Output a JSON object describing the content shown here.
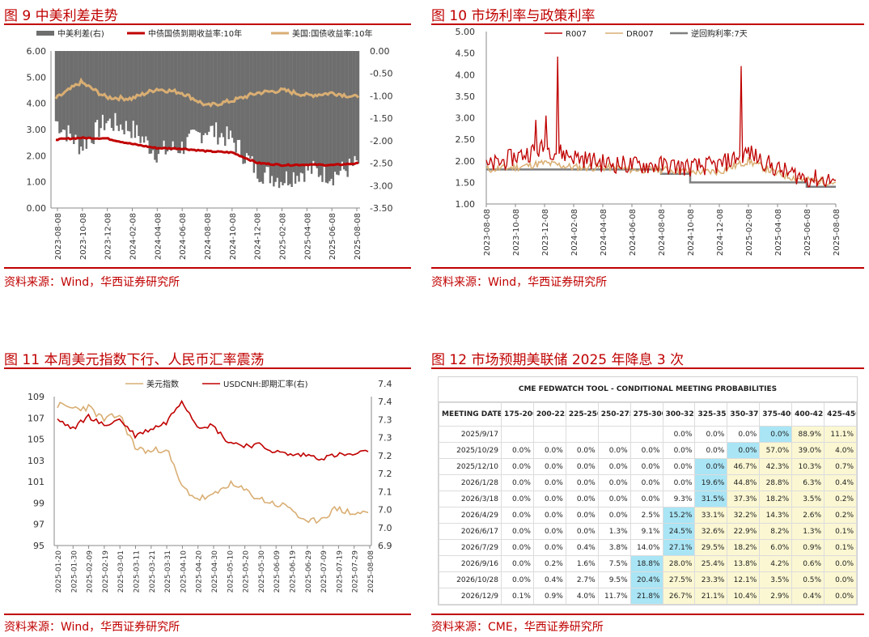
{
  "panels": {
    "p9": {
      "title": "图 9  中美利差走势",
      "source": "资料来源：Wind，华西证券研究所",
      "legend": [
        "中美利差(右)",
        "中债国债到期收益率:10年",
        "美国:国债收益率:10年"
      ],
      "colors": {
        "spread": "#6e6e6e",
        "cn": "#c00000",
        "us": "#d9ae73"
      }
    },
    "p10": {
      "title": "图 10  市场利率与政策利率",
      "source": "资料来源：Wind，华西证券研究所",
      "legend": [
        "R007",
        "DR007",
        "逆回购利率:7天"
      ],
      "colors": {
        "r007": "#c00000",
        "dr007": "#d9ae73",
        "rev": "#7f7f7f"
      }
    },
    "p11": {
      "title": "图 11 本周美元指数下行、人民币汇率震荡",
      "source": "资料来源：Wind，华西证券研究所",
      "legend": [
        "美元指数",
        "USDCNH:即期汇率(右)"
      ],
      "colors": {
        "dxy": "#d9ae73",
        "cnh": "#c00000"
      }
    },
    "p12": {
      "title": "图 12 市场预期美联储 2025 年降息 3 次",
      "source": "资料来源：CME，华西证券研究所",
      "table_title": "CME FEDWATCH TOOL - CONDITIONAL MEETING PROBABILITIES",
      "columns": [
        "MEETING DATE",
        "175-200",
        "200-225",
        "225-250",
        "250-275",
        "275-300",
        "300-325",
        "325-350",
        "350-375",
        "375-400",
        "400-425",
        "425-450"
      ],
      "rows": [
        [
          "2025/9/17",
          "",
          "",
          "",
          "",
          "",
          "0.0%",
          "0.0%",
          "0.0%",
          "0.0%",
          "88.9%",
          "11.1%"
        ],
        [
          "2025/10/29",
          "0.0%",
          "0.0%",
          "0.0%",
          "0.0%",
          "0.0%",
          "0.0%",
          "0.0%",
          "0.0%",
          "57.0%",
          "39.0%",
          "4.0%"
        ],
        [
          "2025/12/10",
          "0.0%",
          "0.0%",
          "0.0%",
          "0.0%",
          "0.0%",
          "0.0%",
          "0.0%",
          "46.7%",
          "42.3%",
          "10.3%",
          "0.7%"
        ],
        [
          "2026/1/28",
          "0.0%",
          "0.0%",
          "0.0%",
          "0.0%",
          "0.0%",
          "0.0%",
          "19.6%",
          "44.8%",
          "28.8%",
          "6.3%",
          "0.4%"
        ],
        [
          "2026/3/18",
          "0.0%",
          "0.0%",
          "0.0%",
          "0.0%",
          "0.0%",
          "9.3%",
          "31.5%",
          "37.3%",
          "18.2%",
          "3.5%",
          "0.2%"
        ],
        [
          "2026/4/29",
          "0.0%",
          "0.0%",
          "0.0%",
          "0.0%",
          "2.5%",
          "15.2%",
          "33.1%",
          "32.2%",
          "14.3%",
          "2.6%",
          "0.2%"
        ],
        [
          "2026/6/17",
          "0.0%",
          "0.0%",
          "0.0%",
          "1.3%",
          "9.1%",
          "24.5%",
          "32.6%",
          "22.9%",
          "8.2%",
          "1.3%",
          "0.1%"
        ],
        [
          "2026/7/29",
          "0.0%",
          "0.0%",
          "0.4%",
          "3.8%",
          "14.0%",
          "27.1%",
          "29.5%",
          "18.2%",
          "6.0%",
          "0.9%",
          "0.1%"
        ],
        [
          "2026/9/16",
          "0.0%",
          "0.2%",
          "1.6%",
          "7.5%",
          "18.8%",
          "28.0%",
          "25.4%",
          "13.8%",
          "4.2%",
          "0.6%",
          "0.0%"
        ],
        [
          "2026/10/28",
          "0.0%",
          "0.4%",
          "2.7%",
          "9.5%",
          "20.4%",
          "27.5%",
          "23.3%",
          "12.1%",
          "3.5%",
          "0.5%",
          "0.0%"
        ],
        [
          "2026/12/9",
          "0.1%",
          "0.9%",
          "4.0%",
          "11.7%",
          "21.8%",
          "26.7%",
          "21.1%",
          "10.4%",
          "2.9%",
          "0.4%",
          "0.0%"
        ]
      ],
      "highlight": [
        [
          0,
          9
        ],
        [
          1,
          8
        ],
        [
          2,
          7
        ],
        [
          3,
          7
        ],
        [
          4,
          7
        ],
        [
          5,
          6
        ],
        [
          6,
          6
        ],
        [
          7,
          6
        ],
        [
          8,
          5
        ],
        [
          9,
          5
        ],
        [
          10,
          5
        ]
      ],
      "colors": {
        "max": "#a9e5f5",
        "yellow": "#fbf7d2"
      }
    }
  },
  "chart_data": [
    {
      "type": "line",
      "x": [
        "2023-08-08",
        "2023-10-08",
        "2023-12-08",
        "2024-02-08",
        "2024-04-08",
        "2024-06-08",
        "2024-08-08",
        "2024-10-08",
        "2024-12-08",
        "2025-02-08",
        "2025-04-08",
        "2025-06-08",
        "2025-08-08"
      ],
      "ylim": [
        0,
        6
      ],
      "y2lim": [
        -3.5,
        0
      ],
      "yticks": [
        "6.00",
        "5.00",
        "4.00",
        "3.00",
        "2.00",
        "1.00",
        "0.00"
      ],
      "y2ticks": [
        "0.00",
        "-0.50",
        "-1.00",
        "-1.50",
        "-2.00",
        "-2.50",
        "-3.00",
        "-3.50"
      ],
      "series": [
        {
          "name": "中债国债到期收益率:10年",
          "axis": "left",
          "values": [
            2.62,
            2.68,
            2.66,
            2.45,
            2.29,
            2.27,
            2.17,
            2.12,
            1.72,
            1.64,
            1.66,
            1.64,
            1.71
          ]
        },
        {
          "name": "美国:国债收益率:10年",
          "axis": "left",
          "values": [
            4.18,
            4.81,
            4.23,
            4.18,
            4.55,
            4.41,
            3.9,
            4.1,
            4.4,
            4.5,
            4.3,
            4.4,
            4.22
          ]
        },
        {
          "name": "中美利差(右)",
          "axis": "right",
          "type": "area",
          "values": [
            -1.56,
            -2.13,
            -1.57,
            -1.73,
            -2.26,
            -2.14,
            -1.73,
            -1.98,
            -2.68,
            -2.86,
            -2.64,
            -2.76,
            -2.51
          ]
        }
      ]
    },
    {
      "type": "line",
      "x": [
        "2023-08-08",
        "2023-10-08",
        "2023-12-08",
        "2024-02-08",
        "2024-04-08",
        "2024-06-08",
        "2024-08-08",
        "2024-10-08",
        "2024-12-08",
        "2025-02-08",
        "2025-04-08",
        "2025-06-08",
        "2025-08-08"
      ],
      "ylim": [
        1.0,
        5.0
      ],
      "yticks": [
        "5.00",
        "4.50",
        "4.00",
        "3.50",
        "3.00",
        "2.50",
        "2.00",
        "1.50",
        "1.00"
      ],
      "series": [
        {
          "name": "R007",
          "values": [
            1.85,
            2.1,
            2.3,
            2.1,
            1.95,
            1.9,
            1.9,
            1.85,
            1.9,
            2.2,
            1.8,
            1.6,
            1.55
          ],
          "spikes": [
            [
              "2023-12-29",
              4.42
            ],
            [
              "2025-01-15",
              4.2
            ]
          ]
        },
        {
          "name": "DR007",
          "values": [
            1.8,
            1.85,
            1.95,
            1.85,
            1.85,
            1.8,
            1.8,
            1.75,
            1.75,
            2.0,
            1.7,
            1.55,
            1.5
          ]
        },
        {
          "name": "逆回购利率:7天",
          "values": [
            1.8,
            1.8,
            1.8,
            1.8,
            1.8,
            1.8,
            1.7,
            1.5,
            1.5,
            1.5,
            1.5,
            1.4,
            1.4
          ]
        }
      ]
    },
    {
      "type": "line",
      "x": [
        "2025-01-20",
        "2025-01-30",
        "2025-02-09",
        "2025-02-19",
        "2025-03-01",
        "2025-03-11",
        "2025-03-21",
        "2025-03-31",
        "2025-04-10",
        "2025-04-20",
        "2025-04-30",
        "2025-05-10",
        "2025-05-20",
        "2025-05-30",
        "2025-06-09",
        "2025-06-19",
        "2025-06-29",
        "2025-07-09",
        "2025-07-19",
        "2025-07-29",
        "2025-08-08"
      ],
      "ylim": [
        95,
        109
      ],
      "y2lim": [
        6.9,
        7.4
      ],
      "yticks": [
        "109",
        "107",
        "105",
        "103",
        "101",
        "99",
        "97",
        "95"
      ],
      "y2ticks": [
        "7.4",
        "7.4",
        "7.3",
        "7.3",
        "7.2",
        "7.2",
        "7.1",
        "7.0",
        "7.0",
        "6.9"
      ],
      "series": [
        {
          "name": "美元指数",
          "axis": "left",
          "values": [
            108.2,
            107.9,
            108.0,
            106.8,
            107.3,
            104.2,
            103.8,
            104.2,
            100.5,
            99.4,
            99.6,
            100.8,
            100.2,
            99.4,
            98.9,
            98.6,
            97.0,
            97.6,
            98.5,
            98.0,
            98.1
          ]
        },
        {
          "name": "USDCNH:即期汇率(右)",
          "axis": "right",
          "values": [
            7.29,
            7.26,
            7.3,
            7.27,
            7.29,
            7.24,
            7.26,
            7.28,
            7.35,
            7.27,
            7.27,
            7.22,
            7.21,
            7.21,
            7.19,
            7.18,
            7.18,
            7.17,
            7.18,
            7.18,
            7.19
          ]
        }
      ]
    }
  ]
}
